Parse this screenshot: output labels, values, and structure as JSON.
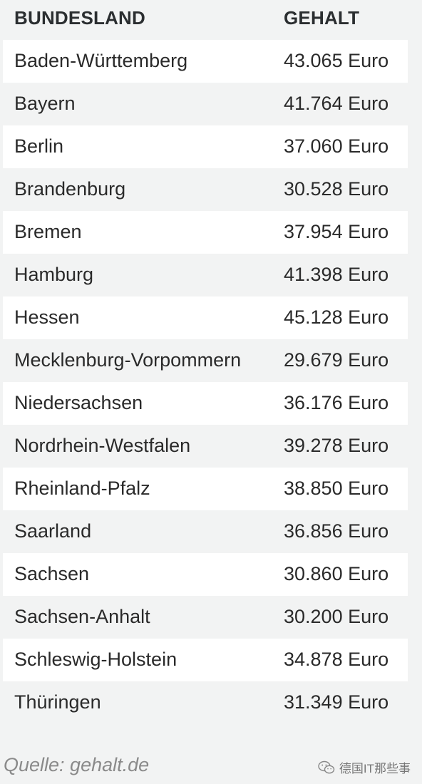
{
  "table": {
    "header": {
      "state": "BUNDESLAND",
      "salary": "GEHALT"
    },
    "rows": [
      {
        "state": "Baden-Württemberg",
        "salary": "43.065 Euro"
      },
      {
        "state": "Bayern",
        "salary": "41.764 Euro"
      },
      {
        "state": "Berlin",
        "salary": "37.060 Euro"
      },
      {
        "state": "Brandenburg",
        "salary": "30.528 Euro"
      },
      {
        "state": "Bremen",
        "salary": "37.954 Euro"
      },
      {
        "state": "Hamburg",
        "salary": "41.398 Euro"
      },
      {
        "state": "Hessen",
        "salary": "45.128 Euro"
      },
      {
        "state": "Mecklenburg-Vorpommern",
        "salary": "29.679 Euro"
      },
      {
        "state": "Niedersachsen",
        "salary": "36.176 Euro"
      },
      {
        "state": "Nordrhein-Westfalen",
        "salary": "39.278 Euro"
      },
      {
        "state": "Rheinland-Pfalz",
        "salary": "38.850 Euro"
      },
      {
        "state": "Saarland",
        "salary": "36.856 Euro"
      },
      {
        "state": "Sachsen",
        "salary": "30.860 Euro"
      },
      {
        "state": "Sachsen-Anhalt",
        "salary": "30.200 Euro"
      },
      {
        "state": "Schleswig-Holstein",
        "salary": "34.878 Euro"
      },
      {
        "state": "Thüringen",
        "salary": "31.349 Euro"
      }
    ]
  },
  "source": "Quelle: gehalt.de",
  "watermark": {
    "text": "德国IT那些事",
    "icon": "wechat-icon"
  }
}
